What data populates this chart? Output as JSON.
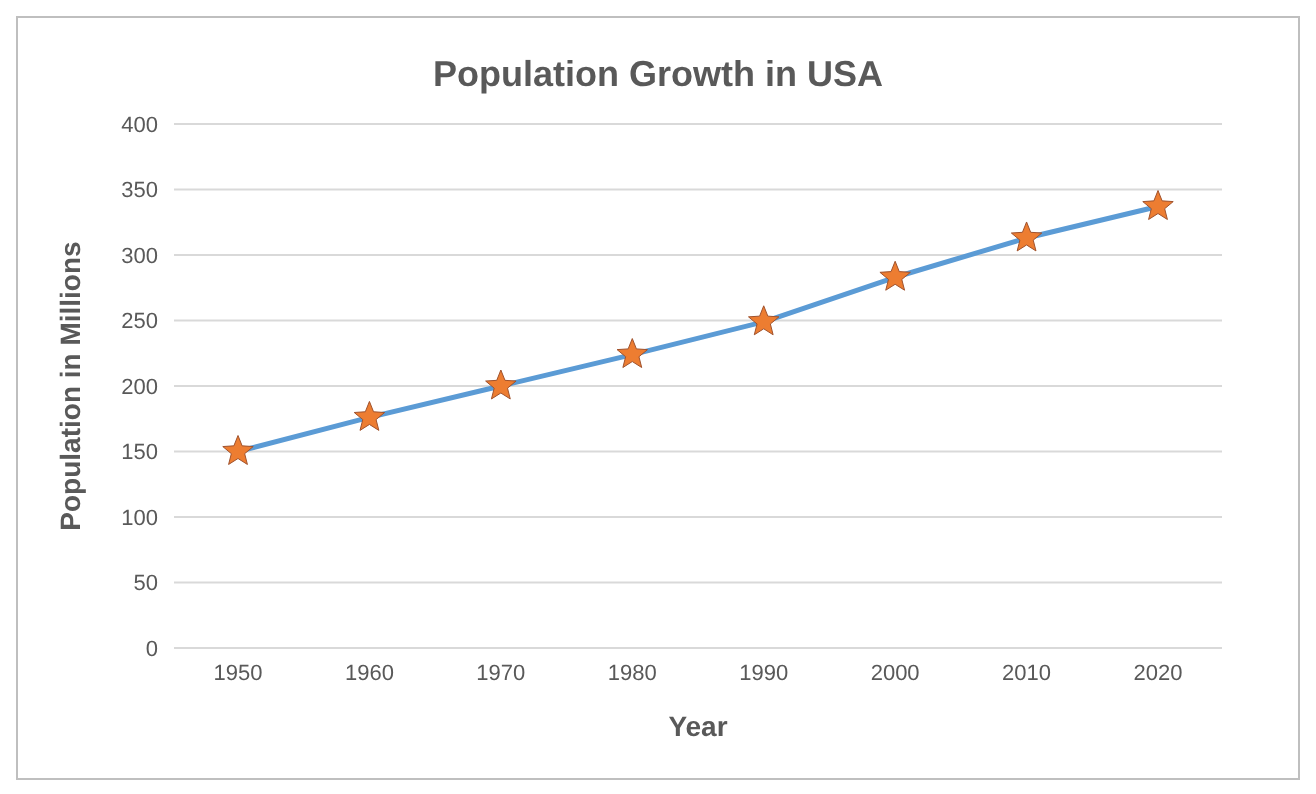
{
  "chart_data": {
    "type": "line",
    "title": "Population Growth in USA",
    "xlabel": "Year",
    "ylabel": "Population in Millions",
    "categories": [
      "1950",
      "1960",
      "1970",
      "1980",
      "1990",
      "2000",
      "2010",
      "2020"
    ],
    "series": [
      {
        "color": "#5b9bd5",
        "colors": [
          "#ed7d31",
          "#ed7d31",
          "#ed7d31",
          "#ed7d31",
          "#ed7d31",
          "#ed7d31",
          "#ed7d31",
          "#ed7d31"
        ],
        "values": [
          150,
          176,
          200,
          224,
          249,
          283,
          313,
          337
        ]
      }
    ],
    "ylim": [
      0,
      400
    ],
    "yticks": [
      0,
      50,
      100,
      150,
      200,
      250,
      300,
      350,
      400
    ],
    "grid": "y",
    "marker": "star",
    "line_style": "solid"
  }
}
